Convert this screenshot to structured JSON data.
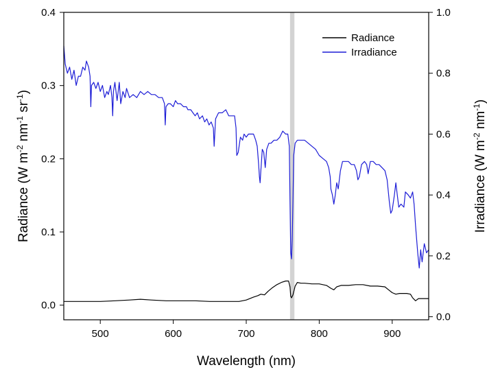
{
  "chart_data": {
    "type": "line",
    "title": "",
    "xlabel": "Wavelength (nm)",
    "ylabel_left": {
      "text": "Radiance (W m",
      "parts": [
        {
          "t": "Radiance (W m",
          "sup": false
        },
        {
          "t": "-2",
          "sup": true
        },
        {
          "t": " nm",
          "sup": false
        },
        {
          "t": "-1",
          "sup": true
        },
        {
          "t": " sr",
          "sup": false
        },
        {
          "t": "-1",
          "sup": true
        },
        {
          "t": ")",
          "sup": false
        }
      ]
    },
    "ylabel_right": {
      "text": "Irradiance (W m",
      "parts": [
        {
          "t": "Irradiance (W m",
          "sup": false
        },
        {
          "t": "-2",
          "sup": true
        },
        {
          "t": " nm",
          "sup": false
        },
        {
          "t": "-1",
          "sup": true
        },
        {
          "t": ")",
          "sup": false
        }
      ]
    },
    "xlim": [
      450,
      950
    ],
    "ylim_left": [
      -0.02,
      0.4
    ],
    "ylim_right": [
      -0.01,
      1.0
    ],
    "x_ticks": [
      500,
      600,
      700,
      800,
      900
    ],
    "y_ticks_left": [
      0.0,
      0.1,
      0.2,
      0.3,
      0.4
    ],
    "y_ticks_left_labels": [
      "0.0",
      "0.1",
      "0.2",
      "0.3",
      "0.4"
    ],
    "y_ticks_right": [
      0.0,
      0.2,
      0.4,
      0.6,
      0.8,
      1.0
    ],
    "y_ticks_right_labels": [
      "0.0",
      "0.2",
      "0.4",
      "0.6",
      "0.8",
      "1.0"
    ],
    "highlight_band": {
      "x_range": [
        760,
        766
      ],
      "color": "#d3d3d3"
    },
    "legend": {
      "placement": "top-right"
    },
    "grid": false,
    "series": [
      {
        "name": "Radiance",
        "axis": "left",
        "color": "#000000",
        "points": [
          [
            450,
            0.005
          ],
          [
            480,
            0.005
          ],
          [
            500,
            0.005
          ],
          [
            520,
            0.006
          ],
          [
            540,
            0.007
          ],
          [
            555,
            0.008
          ],
          [
            570,
            0.007
          ],
          [
            590,
            0.006
          ],
          [
            610,
            0.006
          ],
          [
            630,
            0.006
          ],
          [
            650,
            0.005
          ],
          [
            670,
            0.005
          ],
          [
            690,
            0.005
          ],
          [
            700,
            0.007
          ],
          [
            710,
            0.011
          ],
          [
            716,
            0.013
          ],
          [
            720,
            0.015
          ],
          [
            725,
            0.014
          ],
          [
            730,
            0.019
          ],
          [
            736,
            0.024
          ],
          [
            742,
            0.028
          ],
          [
            748,
            0.031
          ],
          [
            754,
            0.033
          ],
          [
            758,
            0.033
          ],
          [
            760,
            0.025
          ],
          [
            761,
            0.012
          ],
          [
            762,
            0.01
          ],
          [
            764,
            0.014
          ],
          [
            767,
            0.026
          ],
          [
            770,
            0.031
          ],
          [
            775,
            0.03
          ],
          [
            780,
            0.03
          ],
          [
            790,
            0.029
          ],
          [
            800,
            0.029
          ],
          [
            810,
            0.027
          ],
          [
            816,
            0.023
          ],
          [
            820,
            0.021
          ],
          [
            824,
            0.025
          ],
          [
            830,
            0.027
          ],
          [
            840,
            0.027
          ],
          [
            850,
            0.028
          ],
          [
            860,
            0.028
          ],
          [
            870,
            0.026
          ],
          [
            880,
            0.026
          ],
          [
            890,
            0.025
          ],
          [
            895,
            0.021
          ],
          [
            900,
            0.017
          ],
          [
            905,
            0.015
          ],
          [
            910,
            0.016
          ],
          [
            920,
            0.016
          ],
          [
            925,
            0.015
          ],
          [
            928,
            0.01
          ],
          [
            932,
            0.006
          ],
          [
            936,
            0.009
          ],
          [
            940,
            0.009
          ],
          [
            950,
            0.009
          ]
        ]
      },
      {
        "name": "Irradiance",
        "axis": "right",
        "color": "#1c1cd6",
        "points": [
          [
            450,
            0.89
          ],
          [
            452,
            0.83
          ],
          [
            455,
            0.8
          ],
          [
            458,
            0.82
          ],
          [
            461,
            0.78
          ],
          [
            464,
            0.81
          ],
          [
            467,
            0.76
          ],
          [
            470,
            0.79
          ],
          [
            473,
            0.79
          ],
          [
            476,
            0.82
          ],
          [
            479,
            0.81
          ],
          [
            481,
            0.84
          ],
          [
            484,
            0.82
          ],
          [
            486,
            0.79
          ],
          [
            487,
            0.69
          ],
          [
            488,
            0.76
          ],
          [
            491,
            0.77
          ],
          [
            494,
            0.75
          ],
          [
            497,
            0.77
          ],
          [
            500,
            0.74
          ],
          [
            503,
            0.76
          ],
          [
            506,
            0.72
          ],
          [
            509,
            0.74
          ],
          [
            511,
            0.73
          ],
          [
            514,
            0.76
          ],
          [
            516,
            0.72
          ],
          [
            517,
            0.66
          ],
          [
            518,
            0.74
          ],
          [
            520,
            0.77
          ],
          [
            523,
            0.71
          ],
          [
            526,
            0.77
          ],
          [
            528,
            0.7
          ],
          [
            531,
            0.74
          ],
          [
            534,
            0.72
          ],
          [
            536,
            0.75
          ],
          [
            540,
            0.72
          ],
          [
            545,
            0.73
          ],
          [
            550,
            0.72
          ],
          [
            555,
            0.74
          ],
          [
            560,
            0.73
          ],
          [
            565,
            0.74
          ],
          [
            570,
            0.73
          ],
          [
            575,
            0.73
          ],
          [
            580,
            0.72
          ],
          [
            585,
            0.72
          ],
          [
            588,
            0.7
          ],
          [
            589,
            0.63
          ],
          [
            590,
            0.69
          ],
          [
            593,
            0.7
          ],
          [
            596,
            0.7
          ],
          [
            600,
            0.69
          ],
          [
            603,
            0.71
          ],
          [
            606,
            0.7
          ],
          [
            610,
            0.7
          ],
          [
            614,
            0.69
          ],
          [
            618,
            0.69
          ],
          [
            620,
            0.68
          ],
          [
            624,
            0.68
          ],
          [
            627,
            0.67
          ],
          [
            630,
            0.66
          ],
          [
            633,
            0.67
          ],
          [
            636,
            0.65
          ],
          [
            640,
            0.66
          ],
          [
            643,
            0.64
          ],
          [
            646,
            0.65
          ],
          [
            649,
            0.63
          ],
          [
            652,
            0.64
          ],
          [
            655,
            0.62
          ],
          [
            656,
            0.56
          ],
          [
            658,
            0.65
          ],
          [
            662,
            0.67
          ],
          [
            667,
            0.67
          ],
          [
            672,
            0.68
          ],
          [
            676,
            0.66
          ],
          [
            680,
            0.66
          ],
          [
            684,
            0.66
          ],
          [
            686,
            0.62
          ],
          [
            687,
            0.53
          ],
          [
            689,
            0.54
          ],
          [
            692,
            0.59
          ],
          [
            695,
            0.58
          ],
          [
            697,
            0.6
          ],
          [
            700,
            0.59
          ],
          [
            703,
            0.6
          ],
          [
            706,
            0.6
          ],
          [
            710,
            0.6
          ],
          [
            713,
            0.58
          ],
          [
            715,
            0.56
          ],
          [
            717,
            0.5
          ],
          [
            718,
            0.46
          ],
          [
            719,
            0.44
          ],
          [
            720,
            0.48
          ],
          [
            722,
            0.55
          ],
          [
            724,
            0.54
          ],
          [
            726,
            0.49
          ],
          [
            728,
            0.55
          ],
          [
            731,
            0.57
          ],
          [
            734,
            0.57
          ],
          [
            738,
            0.58
          ],
          [
            742,
            0.58
          ],
          [
            746,
            0.59
          ],
          [
            750,
            0.61
          ],
          [
            754,
            0.6
          ],
          [
            757,
            0.6
          ],
          [
            759,
            0.56
          ],
          [
            760,
            0.38
          ],
          [
            761,
            0.21
          ],
          [
            762,
            0.19
          ],
          [
            763,
            0.25
          ],
          [
            764,
            0.38
          ],
          [
            765,
            0.53
          ],
          [
            767,
            0.57
          ],
          [
            770,
            0.58
          ],
          [
            775,
            0.58
          ],
          [
            780,
            0.58
          ],
          [
            785,
            0.57
          ],
          [
            790,
            0.56
          ],
          [
            795,
            0.55
          ],
          [
            800,
            0.53
          ],
          [
            805,
            0.52
          ],
          [
            810,
            0.51
          ],
          [
            813,
            0.49
          ],
          [
            815,
            0.46
          ],
          [
            816,
            0.42
          ],
          [
            818,
            0.4
          ],
          [
            820,
            0.37
          ],
          [
            822,
            0.4
          ],
          [
            824,
            0.44
          ],
          [
            826,
            0.42
          ],
          [
            829,
            0.48
          ],
          [
            832,
            0.51
          ],
          [
            836,
            0.51
          ],
          [
            840,
            0.51
          ],
          [
            844,
            0.5
          ],
          [
            848,
            0.5
          ],
          [
            851,
            0.48
          ],
          [
            853,
            0.45
          ],
          [
            855,
            0.46
          ],
          [
            858,
            0.5
          ],
          [
            862,
            0.51
          ],
          [
            865,
            0.5
          ],
          [
            867,
            0.47
          ],
          [
            870,
            0.51
          ],
          [
            874,
            0.51
          ],
          [
            878,
            0.5
          ],
          [
            882,
            0.5
          ],
          [
            886,
            0.49
          ],
          [
            890,
            0.48
          ],
          [
            893,
            0.45
          ],
          [
            896,
            0.38
          ],
          [
            898,
            0.34
          ],
          [
            900,
            0.35
          ],
          [
            903,
            0.4
          ],
          [
            905,
            0.44
          ],
          [
            907,
            0.4
          ],
          [
            909,
            0.36
          ],
          [
            912,
            0.37
          ],
          [
            916,
            0.36
          ],
          [
            918,
            0.41
          ],
          [
            922,
            0.4
          ],
          [
            925,
            0.39
          ],
          [
            928,
            0.41
          ],
          [
            930,
            0.37
          ],
          [
            932,
            0.3
          ],
          [
            935,
            0.21
          ],
          [
            937,
            0.16
          ],
          [
            939,
            0.22
          ],
          [
            941,
            0.18
          ],
          [
            944,
            0.24
          ],
          [
            947,
            0.21
          ],
          [
            950,
            0.22
          ]
        ]
      }
    ]
  }
}
